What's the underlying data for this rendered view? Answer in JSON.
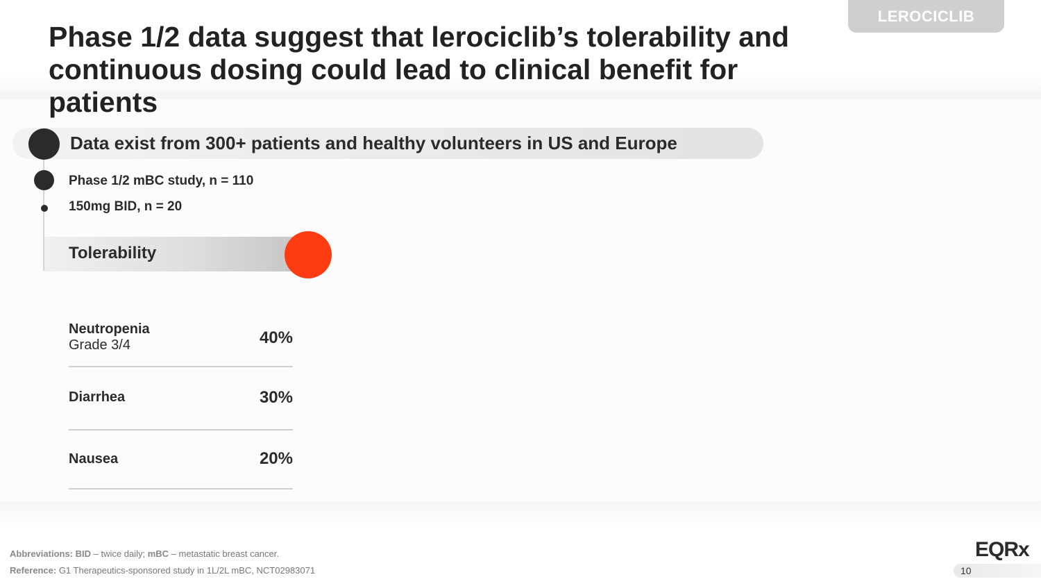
{
  "tag": "LEROCICLIB",
  "title": {
    "line1": "Phase 1/2 data suggest that lerociclib’s tolerability and",
    "line2": "continuous dosing could lead to clinical benefit for patients"
  },
  "highlight": "Data exist from 300+ patients and healthy volunteers in US and Europe",
  "study": {
    "line1": "Phase 1/2 mBC study, n = 110",
    "line2": "150mg BID, n = 20"
  },
  "tolerability": {
    "heading": "Tolerability",
    "rows": [
      {
        "label": "Neutropenia",
        "sub": "Grade 3/4",
        "value": "40%"
      },
      {
        "label": "Diarrhea",
        "sub": "",
        "value": "30%"
      },
      {
        "label": "Nausea",
        "sub": "",
        "value": "20%"
      }
    ]
  },
  "footer": {
    "abbr_label": "Abbreviations:",
    "abbr_bid": "BID",
    "abbr_bid_def": " – twice daily; ",
    "abbr_mbc": "mBC",
    "abbr_mbc_def": " – metastatic breast cancer.",
    "ref_label": "Reference:",
    "ref_text": " G1 Therapeutics-sponsored study in 1L/2L mBC, NCT02983071"
  },
  "logo": "EQRx",
  "page_number": "10",
  "colors": {
    "accent": "#ff3b12",
    "dark": "#2b2b2b"
  }
}
